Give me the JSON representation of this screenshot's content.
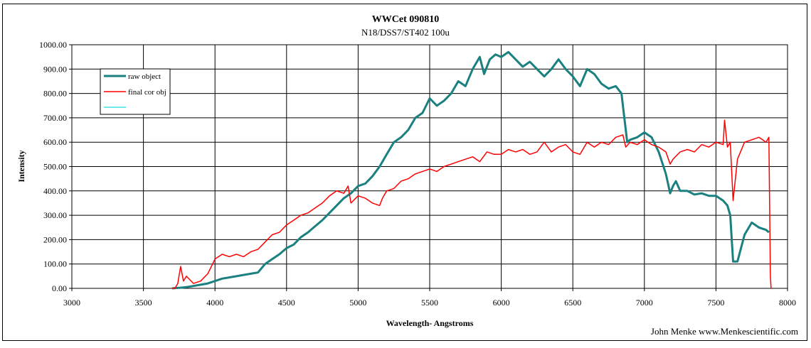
{
  "chart_data": {
    "type": "line",
    "title": "WWCet 090810",
    "subtitle": "N18/DSS7/ST402  100u",
    "xlabel": "Wavelength- Angstroms",
    "ylabel": "Intensity",
    "credit": "John Menke www.Menkescientific.com",
    "xlim": [
      3000,
      8000
    ],
    "ylim": [
      0,
      1000
    ],
    "x_ticks": [
      3000,
      3500,
      4000,
      4500,
      5000,
      5500,
      6000,
      6500,
      7000,
      7500,
      8000
    ],
    "y_ticks": [
      0,
      100,
      200,
      300,
      400,
      500,
      600,
      700,
      800,
      900,
      1000
    ],
    "y_tick_labels": [
      "0.00",
      "100.00",
      "200.00",
      "300.00",
      "400.00",
      "500.00",
      "600.00",
      "700.00",
      "800.00",
      "900.00",
      "1000.00"
    ],
    "grid": true,
    "legend_position": "top-left",
    "series": [
      {
        "name": "raw object",
        "color": "#1a8080",
        "x": [
          3700,
          3750,
          3800,
          3850,
          3900,
          3950,
          4000,
          4050,
          4100,
          4150,
          4200,
          4250,
          4300,
          4350,
          4400,
          4450,
          4500,
          4550,
          4600,
          4650,
          4700,
          4750,
          4800,
          4850,
          4900,
          4950,
          5000,
          5050,
          5100,
          5150,
          5200,
          5250,
          5300,
          5350,
          5400,
          5450,
          5500,
          5550,
          5600,
          5650,
          5700,
          5750,
          5800,
          5850,
          5880,
          5920,
          5960,
          6000,
          6050,
          6100,
          6150,
          6200,
          6250,
          6300,
          6350,
          6400,
          6450,
          6500,
          6550,
          6600,
          6650,
          6700,
          6750,
          6800,
          6840,
          6860,
          6880,
          6900,
          6950,
          7000,
          7050,
          7100,
          7150,
          7180,
          7200,
          7220,
          7250,
          7300,
          7350,
          7400,
          7450,
          7500,
          7550,
          7580,
          7600,
          7620,
          7650,
          7700,
          7750,
          7800,
          7850,
          7870
        ],
        "y": [
          0,
          2,
          5,
          10,
          15,
          20,
          30,
          40,
          45,
          50,
          55,
          60,
          65,
          100,
          120,
          140,
          165,
          180,
          210,
          230,
          255,
          280,
          310,
          340,
          370,
          390,
          420,
          430,
          460,
          500,
          550,
          600,
          620,
          650,
          700,
          720,
          780,
          750,
          770,
          800,
          850,
          830,
          900,
          950,
          880,
          940,
          960,
          950,
          970,
          940,
          910,
          930,
          900,
          870,
          900,
          940,
          900,
          870,
          830,
          900,
          880,
          840,
          820,
          830,
          800,
          700,
          600,
          610,
          620,
          640,
          620,
          560,
          470,
          390,
          420,
          440,
          400,
          400,
          385,
          390,
          380,
          380,
          360,
          340,
          300,
          110,
          110,
          220,
          270,
          250,
          240,
          230
        ]
      },
      {
        "name": "final cor obj",
        "color": "#ff0000",
        "x": [
          3700,
          3720,
          3740,
          3760,
          3780,
          3800,
          3850,
          3900,
          3950,
          4000,
          4050,
          4100,
          4150,
          4200,
          4250,
          4300,
          4350,
          4400,
          4450,
          4500,
          4550,
          4600,
          4650,
          4700,
          4750,
          4800,
          4850,
          4900,
          4930,
          4950,
          5000,
          5050,
          5100,
          5150,
          5170,
          5200,
          5250,
          5300,
          5350,
          5400,
          5450,
          5500,
          5550,
          5600,
          5650,
          5700,
          5750,
          5800,
          5850,
          5900,
          5950,
          6000,
          6050,
          6100,
          6150,
          6200,
          6250,
          6300,
          6350,
          6400,
          6450,
          6500,
          6550,
          6600,
          6650,
          6700,
          6750,
          6800,
          6850,
          6870,
          6900,
          6950,
          7000,
          7050,
          7100,
          7150,
          7180,
          7200,
          7250,
          7300,
          7350,
          7400,
          7450,
          7500,
          7550,
          7560,
          7580,
          7600,
          7620,
          7650,
          7700,
          7750,
          7800,
          7850,
          7870,
          7880,
          7885
        ],
        "y": [
          0,
          0,
          20,
          90,
          30,
          50,
          20,
          30,
          60,
          120,
          140,
          130,
          140,
          130,
          150,
          160,
          190,
          220,
          230,
          260,
          280,
          300,
          310,
          330,
          350,
          380,
          400,
          390,
          420,
          350,
          380,
          370,
          350,
          340,
          370,
          400,
          410,
          440,
          450,
          470,
          480,
          490,
          480,
          500,
          510,
          520,
          530,
          540,
          520,
          560,
          550,
          550,
          570,
          560,
          570,
          550,
          560,
          600,
          560,
          580,
          590,
          560,
          550,
          600,
          580,
          600,
          590,
          620,
          630,
          580,
          600,
          590,
          610,
          590,
          580,
          560,
          510,
          530,
          560,
          570,
          560,
          590,
          580,
          600,
          590,
          690,
          580,
          600,
          360,
          530,
          600,
          610,
          620,
          600,
          620,
          50,
          0
        ]
      },
      {
        "name": "",
        "color": "#40e0e0",
        "x": [],
        "y": []
      }
    ]
  }
}
